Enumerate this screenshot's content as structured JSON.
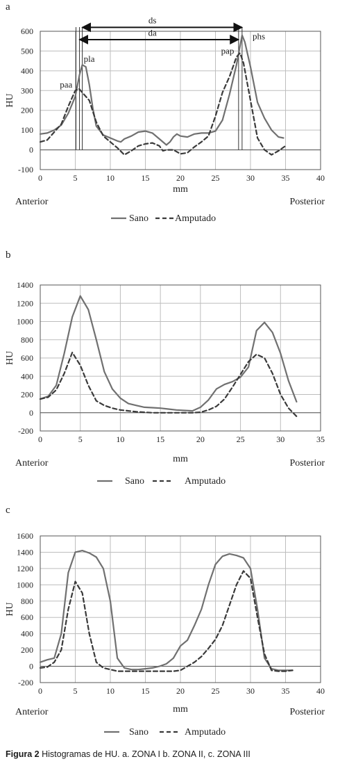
{
  "caption": {
    "label": "Figura 2",
    "text": "Histogramas de HU. a. ZONA I b. ZONA II, c. ZONA III"
  },
  "colors": {
    "sano": "#707070",
    "amputado": "#3a3a3a",
    "grid": "#bdbdbd",
    "axis": "#555555",
    "text": "#222222"
  },
  "chart_data": [
    {
      "panel": "a",
      "type": "line",
      "ylabel": "HU",
      "xlabel": "mm",
      "left_label": "Anterior",
      "right_label": "Posterior",
      "xlim": [
        0,
        40
      ],
      "ylim": [
        -100,
        600
      ],
      "x_ticks": [
        0,
        5,
        10,
        15,
        20,
        25,
        30,
        35,
        40
      ],
      "y_ticks": [
        -100,
        0,
        100,
        200,
        300,
        400,
        500,
        600
      ],
      "legend": {
        "placement": "bottom",
        "entries": [
          "Sano",
          "Amputado"
        ]
      },
      "series": [
        {
          "name": "Sano",
          "style": "solid",
          "points": [
            [
              0,
              80
            ],
            [
              1,
              85
            ],
            [
              2,
              100
            ],
            [
              3,
              125
            ],
            [
              4,
              185
            ],
            [
              5,
              270
            ],
            [
              5.6,
              380
            ],
            [
              6,
              430
            ],
            [
              6.5,
              420
            ],
            [
              7,
              330
            ],
            [
              7.5,
              210
            ],
            [
              8,
              120
            ],
            [
              9,
              75
            ],
            [
              10,
              60
            ],
            [
              11,
              45
            ],
            [
              11.5,
              40
            ],
            [
              12,
              55
            ],
            [
              13,
              70
            ],
            [
              14,
              90
            ],
            [
              15,
              95
            ],
            [
              16,
              85
            ],
            [
              17,
              55
            ],
            [
              18,
              25
            ],
            [
              18.5,
              40
            ],
            [
              19,
              65
            ],
            [
              19.5,
              80
            ],
            [
              20,
              70
            ],
            [
              21,
              65
            ],
            [
              22,
              80
            ],
            [
              23,
              85
            ],
            [
              24,
              85
            ],
            [
              25,
              95
            ],
            [
              26,
              150
            ],
            [
              27,
              280
            ],
            [
              28,
              430
            ],
            [
              28.8,
              580
            ],
            [
              29.2,
              545
            ],
            [
              30,
              420
            ],
            [
              31,
              240
            ],
            [
              32,
              160
            ],
            [
              33,
              100
            ],
            [
              34,
              65
            ],
            [
              34.7,
              60
            ]
          ]
        },
        {
          "name": "Amputado",
          "style": "dashed",
          "points": [
            [
              0,
              40
            ],
            [
              1,
              50
            ],
            [
              2,
              90
            ],
            [
              3,
              130
            ],
            [
              4,
              220
            ],
            [
              5,
              300
            ],
            [
              5.5,
              310
            ],
            [
              6,
              290
            ],
            [
              7,
              250
            ],
            [
              8,
              140
            ],
            [
              9,
              70
            ],
            [
              10,
              40
            ],
            [
              11,
              10
            ],
            [
              12,
              -25
            ],
            [
              13,
              -5
            ],
            [
              14,
              20
            ],
            [
              15,
              30
            ],
            [
              16,
              35
            ],
            [
              17,
              20
            ],
            [
              17.5,
              -5
            ],
            [
              18,
              0
            ],
            [
              19,
              0
            ],
            [
              20,
              -20
            ],
            [
              21,
              -15
            ],
            [
              22,
              15
            ],
            [
              23,
              40
            ],
            [
              24,
              70
            ],
            [
              25,
              170
            ],
            [
              26,
              290
            ],
            [
              27,
              370
            ],
            [
              28,
              470
            ],
            [
              28.5,
              490
            ],
            [
              29,
              440
            ],
            [
              30,
              250
            ],
            [
              31,
              60
            ],
            [
              32,
              0
            ],
            [
              33,
              -25
            ],
            [
              34,
              -5
            ],
            [
              35,
              20
            ]
          ]
        }
      ],
      "annotations": [
        {
          "text": "pla",
          "x": 6.2,
          "y": 445
        },
        {
          "text": "paa",
          "x": 2.8,
          "y": 315
        },
        {
          "text": "pap",
          "x": 25.8,
          "y": 485
        },
        {
          "text": "phs",
          "x": 30.3,
          "y": 560
        },
        {
          "text": "ds",
          "x": 16.0,
          "y": 640
        },
        {
          "text": "da",
          "x": 16.0,
          "y": 578
        }
      ],
      "markers": {
        "x_lines": [
          5.1,
          5.6,
          6.0,
          28.3,
          28.8
        ]
      }
    },
    {
      "panel": "b",
      "type": "line",
      "ylabel": "HU",
      "xlabel": "mm",
      "left_label": "Anterior",
      "right_label": "Posterior",
      "xlim": [
        0,
        35
      ],
      "ylim": [
        -200,
        1400
      ],
      "x_ticks": [
        0,
        5,
        10,
        15,
        20,
        25,
        30,
        35
      ],
      "y_ticks": [
        -200,
        0,
        200,
        400,
        600,
        800,
        1000,
        1200,
        1400
      ],
      "legend": {
        "placement": "bottom",
        "entries": [
          "Sano",
          "Amputado"
        ]
      },
      "series": [
        {
          "name": "Sano",
          "style": "solid",
          "points": [
            [
              0,
              150
            ],
            [
              1,
              180
            ],
            [
              2,
              300
            ],
            [
              3,
              650
            ],
            [
              4,
              1050
            ],
            [
              5,
              1280
            ],
            [
              6,
              1130
            ],
            [
              7,
              800
            ],
            [
              8,
              450
            ],
            [
              9,
              260
            ],
            [
              10,
              160
            ],
            [
              11,
              100
            ],
            [
              12,
              80
            ],
            [
              13,
              60
            ],
            [
              14,
              55
            ],
            [
              15,
              50
            ],
            [
              16,
              40
            ],
            [
              17,
              30
            ],
            [
              18,
              25
            ],
            [
              19,
              20
            ],
            [
              20,
              60
            ],
            [
              21,
              140
            ],
            [
              22,
              260
            ],
            [
              23,
              310
            ],
            [
              24,
              340
            ],
            [
              25,
              390
            ],
            [
              26,
              500
            ],
            [
              27,
              900
            ],
            [
              28,
              990
            ],
            [
              29,
              880
            ],
            [
              30,
              650
            ],
            [
              31,
              350
            ],
            [
              32,
              120
            ]
          ]
        },
        {
          "name": "Amputado",
          "style": "dashed",
          "points": [
            [
              0,
              150
            ],
            [
              1,
              170
            ],
            [
              2,
              250
            ],
            [
              3,
              430
            ],
            [
              4,
              660
            ],
            [
              5,
              520
            ],
            [
              6,
              300
            ],
            [
              7,
              130
            ],
            [
              8,
              80
            ],
            [
              9,
              50
            ],
            [
              10,
              30
            ],
            [
              11,
              20
            ],
            [
              12,
              10
            ],
            [
              13,
              5
            ],
            [
              14,
              0
            ],
            [
              15,
              0
            ],
            [
              16,
              0
            ],
            [
              17,
              0
            ],
            [
              18,
              0
            ],
            [
              19,
              0
            ],
            [
              20,
              5
            ],
            [
              21,
              30
            ],
            [
              22,
              70
            ],
            [
              23,
              150
            ],
            [
              24,
              280
            ],
            [
              25,
              420
            ],
            [
              26,
              560
            ],
            [
              27,
              640
            ],
            [
              28,
              600
            ],
            [
              29,
              430
            ],
            [
              30,
              200
            ],
            [
              31,
              50
            ],
            [
              32,
              -40
            ]
          ]
        }
      ]
    },
    {
      "panel": "c",
      "type": "line",
      "ylabel": "HU",
      "xlabel": "mm",
      "left_label": "Anterior",
      "right_label": "Posterior",
      "xlim": [
        0,
        40
      ],
      "ylim": [
        -200,
        1600
      ],
      "x_ticks": [
        0,
        5,
        10,
        15,
        20,
        25,
        30,
        35,
        40
      ],
      "y_ticks": [
        -200,
        0,
        200,
        400,
        600,
        800,
        1000,
        1200,
        1400,
        1600
      ],
      "legend": {
        "placement": "bottom",
        "entries": [
          "Sano",
          "Amputado"
        ]
      },
      "series": [
        {
          "name": "Sano",
          "style": "solid",
          "points": [
            [
              0,
              50
            ],
            [
              1,
              80
            ],
            [
              2,
              100
            ],
            [
              3,
              400
            ],
            [
              4,
              1150
            ],
            [
              5,
              1400
            ],
            [
              6,
              1420
            ],
            [
              7,
              1390
            ],
            [
              8,
              1340
            ],
            [
              9,
              1200
            ],
            [
              10,
              800
            ],
            [
              11,
              100
            ],
            [
              12,
              -20
            ],
            [
              13,
              -40
            ],
            [
              14,
              -40
            ],
            [
              15,
              -30
            ],
            [
              16,
              -20
            ],
            [
              17,
              0
            ],
            [
              18,
              30
            ],
            [
              19,
              100
            ],
            [
              20,
              250
            ],
            [
              21,
              320
            ],
            [
              22,
              500
            ],
            [
              23,
              700
            ],
            [
              24,
              1000
            ],
            [
              25,
              1250
            ],
            [
              26,
              1350
            ],
            [
              27,
              1380
            ],
            [
              28,
              1360
            ],
            [
              29,
              1330
            ],
            [
              30,
              1200
            ],
            [
              31,
              700
            ],
            [
              32,
              100
            ],
            [
              33,
              -30
            ],
            [
              34,
              -50
            ],
            [
              35,
              -50
            ],
            [
              36,
              -50
            ]
          ]
        },
        {
          "name": "Amputado",
          "style": "dashed",
          "points": [
            [
              0,
              -20
            ],
            [
              1,
              -10
            ],
            [
              2,
              50
            ],
            [
              3,
              200
            ],
            [
              4,
              700
            ],
            [
              5,
              1040
            ],
            [
              6,
              900
            ],
            [
              7,
              400
            ],
            [
              8,
              50
            ],
            [
              9,
              -20
            ],
            [
              10,
              -40
            ],
            [
              11,
              -60
            ],
            [
              12,
              -60
            ],
            [
              13,
              -60
            ],
            [
              14,
              -60
            ],
            [
              15,
              -60
            ],
            [
              16,
              -60
            ],
            [
              17,
              -60
            ],
            [
              18,
              -60
            ],
            [
              19,
              -60
            ],
            [
              20,
              -50
            ],
            [
              21,
              0
            ],
            [
              22,
              50
            ],
            [
              23,
              120
            ],
            [
              24,
              220
            ],
            [
              25,
              330
            ],
            [
              26,
              500
            ],
            [
              27,
              750
            ],
            [
              28,
              1000
            ],
            [
              29,
              1170
            ],
            [
              30,
              1080
            ],
            [
              31,
              600
            ],
            [
              32,
              150
            ],
            [
              33,
              -50
            ],
            [
              34,
              -60
            ],
            [
              35,
              -60
            ],
            [
              36,
              -50
            ]
          ]
        }
      ]
    }
  ]
}
